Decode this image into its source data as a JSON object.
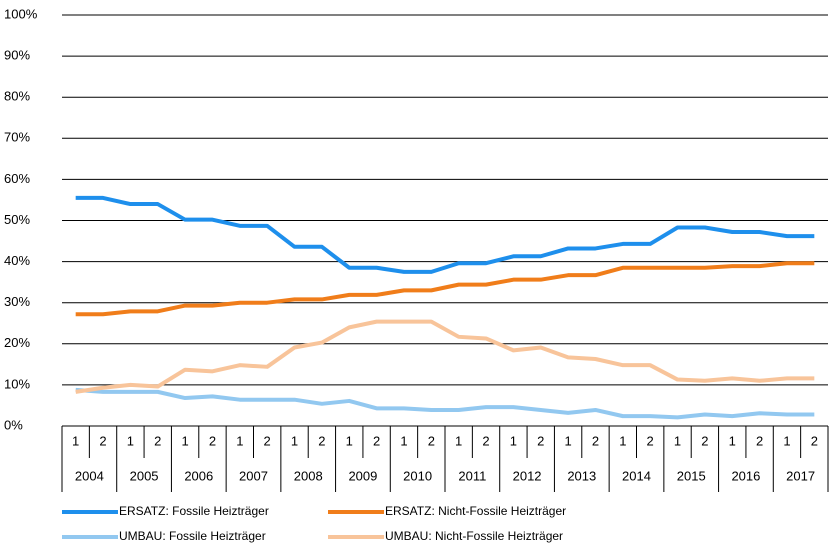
{
  "chart_data": {
    "type": "line",
    "categories": [
      "1",
      "2",
      "1",
      "2",
      "1",
      "2",
      "1",
      "2",
      "1",
      "2",
      "1",
      "2",
      "1",
      "2",
      "1",
      "2",
      "1",
      "2",
      "1",
      "2",
      "1",
      "2",
      "1",
      "2",
      "1",
      "2",
      "1",
      "2"
    ],
    "category_groups": [
      "2004",
      "2005",
      "2006",
      "2007",
      "2008",
      "2009",
      "2010",
      "2011",
      "2012",
      "2013",
      "2014",
      "2015",
      "2016",
      "2017"
    ],
    "ylim": [
      0,
      100
    ],
    "yticks": [
      {
        "value": 0,
        "label": "0%"
      },
      {
        "value": 10,
        "label": "10%"
      },
      {
        "value": 20,
        "label": "20%"
      },
      {
        "value": 30,
        "label": "30%"
      },
      {
        "value": 40,
        "label": "40%"
      },
      {
        "value": 50,
        "label": "50%"
      },
      {
        "value": 60,
        "label": "60%"
      },
      {
        "value": 70,
        "label": "70%"
      },
      {
        "value": 80,
        "label": "80%"
      },
      {
        "value": 90,
        "label": "90%"
      },
      {
        "value": 100,
        "label": "100%"
      }
    ],
    "grid": true,
    "series": [
      {
        "name": "ERSATZ: Fossile Heizträger",
        "color": "#1e8fec",
        "values": [
          55.5,
          55.5,
          54,
          54,
          50.2,
          50.2,
          48.7,
          48.7,
          43.6,
          43.6,
          38.5,
          38.5,
          37.5,
          37.5,
          39.6,
          39.6,
          41.3,
          41.3,
          43.2,
          43.2,
          44.3,
          44.3,
          48.3,
          48.3,
          47.2,
          47.2,
          46.2,
          46.2
        ]
      },
      {
        "name": "ERSATZ: Nicht-Fossile Heizträger",
        "color": "#f07d1a",
        "values": [
          27.2,
          27.2,
          27.9,
          27.9,
          29.3,
          29.3,
          30,
          30,
          30.8,
          30.8,
          31.9,
          31.9,
          33,
          33,
          34.4,
          34.4,
          35.6,
          35.6,
          36.7,
          36.7,
          38.5,
          38.5,
          38.5,
          38.5,
          38.9,
          38.9,
          39.6,
          39.6
        ]
      },
      {
        "name": "UMBAU: Fossile Heizträger",
        "color": "#92c8f0",
        "values": [
          8.8,
          8.3,
          8.3,
          8.3,
          6.8,
          7.2,
          6.4,
          6.4,
          6.4,
          5.4,
          6.1,
          4.3,
          4.3,
          3.9,
          3.9,
          4.6,
          4.6,
          3.9,
          3.2,
          3.9,
          2.4,
          2.4,
          2.1,
          2.8,
          2.4,
          3.1,
          2.8,
          2.8
        ]
      },
      {
        "name": "UMBAU: Nicht-Fossile Heizträger",
        "color": "#f8c49a",
        "values": [
          8.3,
          9.3,
          10,
          9.6,
          13.7,
          13.3,
          14.8,
          14.4,
          19.1,
          20.3,
          24,
          25.4,
          25.4,
          25.4,
          21.7,
          21.3,
          18.4,
          19.1,
          16.7,
          16.3,
          14.8,
          14.8,
          11.3,
          11,
          11.6,
          11,
          11.6,
          11.6
        ]
      }
    ]
  }
}
